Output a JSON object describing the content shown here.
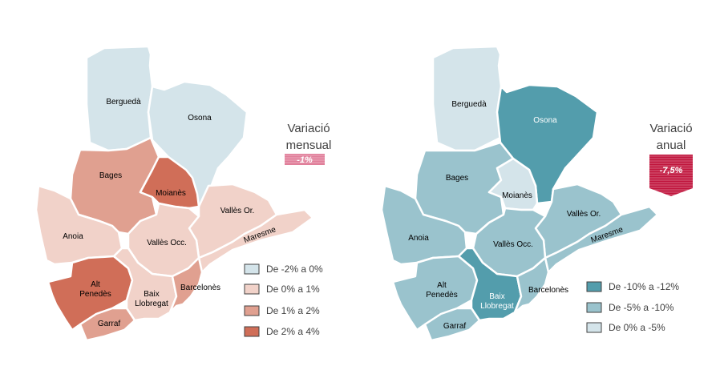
{
  "maps": [
    {
      "id": "mensual",
      "title_line1": "Variació",
      "title_line2": "mensual",
      "badge_value": "-1%",
      "badge_color": "#e07f9a",
      "legend": [
        {
          "label": "De -2% a 0%",
          "color": "#d4e4ea"
        },
        {
          "label": "De 0% a 1%",
          "color": "#f1d2c9"
        },
        {
          "label": "De 1% a 2%",
          "color": "#e0a090"
        },
        {
          "label": "De 2% a 4%",
          "color": "#d06e58"
        }
      ],
      "regions": {
        "bergueda": {
          "label": "Berguedà",
          "class": 0
        },
        "osona": {
          "label": "Osona",
          "class": 0
        },
        "bages": {
          "label": "Bages",
          "class": 2
        },
        "moianes": {
          "label": "Moianès",
          "class": 3
        },
        "valles_or": {
          "label": "Vallès Or.",
          "class": 1
        },
        "anoia": {
          "label": "Anoia",
          "class": 1
        },
        "valles_occ": {
          "label": "Vallès Occ.",
          "class": 1
        },
        "maresme": {
          "label": "Maresme",
          "class": 1
        },
        "alt_penedes": {
          "label_line1": "Alt",
          "label_line2": "Penedès",
          "class": 3
        },
        "baix_llobregat": {
          "label_line1": "Baix",
          "label_line2": "Llobregat",
          "class": 1
        },
        "barcelones": {
          "label": "Barcelonès",
          "class": 2
        },
        "garraf": {
          "label": "Garraf",
          "class": 2
        }
      }
    },
    {
      "id": "anual",
      "title_line1": "Variació",
      "title_line2": "anual",
      "badge_value": "-7,5%",
      "badge_color": "#c0143c",
      "legend": [
        {
          "label": "De -10% a -12%",
          "color": "#539dac"
        },
        {
          "label": "De -5% a -10%",
          "color": "#9ac3cd"
        },
        {
          "label": "De 0% a -5%",
          "color": "#d4e4ea"
        }
      ],
      "regions": {
        "bergueda": {
          "label": "Berguedà",
          "class": 2
        },
        "osona": {
          "label": "Osona",
          "class": 0
        },
        "bages": {
          "label": "Bages",
          "class": 1
        },
        "moianes": {
          "label": "Moianès",
          "class": 2
        },
        "valles_or": {
          "label": "Vallès Or.",
          "class": 1
        },
        "anoia": {
          "label": "Anoia",
          "class": 1
        },
        "valles_occ": {
          "label": "Vallès Occ.",
          "class": 1
        },
        "maresme": {
          "label": "Maresme",
          "class": 1
        },
        "alt_penedes": {
          "label_line1": "Alt",
          "label_line2": "Penedès",
          "class": 1
        },
        "baix_llobregat": {
          "label_line1": "Baix",
          "label_line2": "Llobregat",
          "class": 0
        },
        "barcelones": {
          "label": "Barcelonès",
          "class": 1
        },
        "garraf": {
          "label": "Garraf",
          "class": 1
        }
      }
    }
  ]
}
